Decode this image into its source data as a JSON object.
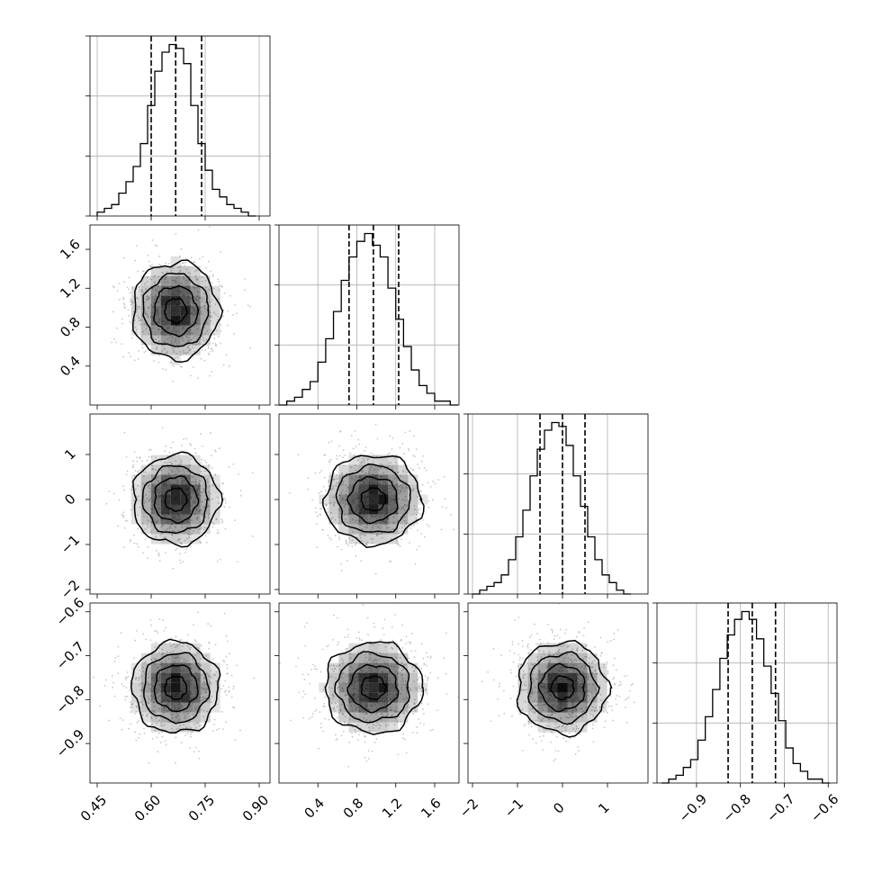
{
  "chart_data": {
    "type": "corner",
    "parameters": [
      {
        "id": "p1",
        "range": [
          0.43,
          0.93
        ],
        "ticks": [
          0.45,
          0.6,
          0.75,
          0.9
        ],
        "tick_labels": [
          "0.45",
          "0.60",
          "0.75",
          "0.90"
        ],
        "quantiles": [
          0.6,
          0.668,
          0.74
        ],
        "mean": 0.668,
        "sd": 0.06,
        "hist_bins": [
          0.45,
          0.47,
          0.49,
          0.51,
          0.53,
          0.55,
          0.57,
          0.59,
          0.61,
          0.63,
          0.65,
          0.67,
          0.69,
          0.71,
          0.73,
          0.75,
          0.77,
          0.79,
          0.81,
          0.83,
          0.85,
          0.87,
          0.89
        ],
        "hist_counts": [
          1,
          2,
          3,
          6,
          9,
          13,
          19,
          29,
          38,
          43,
          45,
          44,
          40,
          29,
          19,
          12,
          7,
          5,
          3,
          2,
          1,
          0
        ]
      },
      {
        "id": "p2",
        "range": [
          0.0,
          1.85
        ],
        "ticks": [
          0.4,
          0.8,
          1.2,
          1.6
        ],
        "tick_labels": [
          "0.4",
          "0.8",
          "1.2",
          "1.6"
        ],
        "quantiles": [
          0.72,
          0.97,
          1.23
        ],
        "mean": 0.97,
        "sd": 0.25,
        "hist_bins": [
          0.0,
          0.08,
          0.16,
          0.24,
          0.32,
          0.4,
          0.48,
          0.56,
          0.64,
          0.72,
          0.8,
          0.88,
          0.96,
          1.04,
          1.12,
          1.2,
          1.28,
          1.36,
          1.44,
          1.52,
          1.6,
          1.68,
          1.76,
          1.84
        ],
        "hist_counts": [
          0,
          1,
          2,
          4,
          6,
          11,
          17,
          24,
          32,
          38,
          42,
          44,
          41,
          38,
          30,
          22,
          15,
          9,
          5,
          3,
          1,
          1,
          0
        ]
      },
      {
        "id": "p3",
        "range": [
          -2.1,
          1.9
        ],
        "ticks": [
          -2,
          -1,
          0,
          1
        ],
        "tick_labels": [
          "−2",
          "−1",
          "0",
          "1"
        ],
        "quantiles": [
          -0.5,
          0.0,
          0.5
        ],
        "mean": 0.0,
        "sd": 0.5,
        "hist_bins": [
          -2.0,
          -1.84,
          -1.68,
          -1.52,
          -1.36,
          -1.2,
          -1.04,
          -0.88,
          -0.72,
          -0.56,
          -0.4,
          -0.24,
          -0.08,
          0.08,
          0.24,
          0.4,
          0.56,
          0.72,
          0.88,
          1.04,
          1.2,
          1.36,
          1.52
        ],
        "hist_counts": [
          0,
          1,
          2,
          3,
          5,
          9,
          15,
          22,
          31,
          38,
          43,
          45,
          44,
          39,
          31,
          23,
          15,
          9,
          5,
          3,
          1,
          0
        ]
      },
      {
        "id": "p4",
        "range": [
          -0.99,
          -0.58
        ],
        "ticks": [
          -0.9,
          -0.8,
          -0.7,
          -0.6
        ],
        "tick_labels": [
          "−0.9",
          "−0.8",
          "−0.7",
          "−0.6"
        ],
        "quantiles": [
          -0.828,
          -0.773,
          -0.72
        ],
        "mean": -0.773,
        "sd": 0.052,
        "hist_bins": [
          -0.98,
          -0.9633,
          -0.9467,
          -0.93,
          -0.9133,
          -0.8967,
          -0.88,
          -0.8633,
          -0.8467,
          -0.83,
          -0.8133,
          -0.7967,
          -0.78,
          -0.7633,
          -0.7467,
          -0.73,
          -0.7133,
          -0.6967,
          -0.68,
          -0.6633,
          -0.6467,
          -0.63,
          -0.6133,
          -0.5967
        ],
        "hist_counts": [
          0,
          1,
          2,
          4,
          6,
          11,
          17,
          24,
          32,
          38,
          42,
          44,
          42,
          37,
          30,
          23,
          16,
          9,
          5,
          3,
          1,
          1,
          0
        ]
      }
    ],
    "contour_levels_sigma": [
      0.5,
      1.0,
      1.5,
      2.0
    ],
    "scatter_points_per_panel": 700,
    "grid": true,
    "line_color": "#000000",
    "shade_color": "#000000",
    "scatter_color": "#9a9a9a",
    "grid_color": "#b0b0b0"
  }
}
